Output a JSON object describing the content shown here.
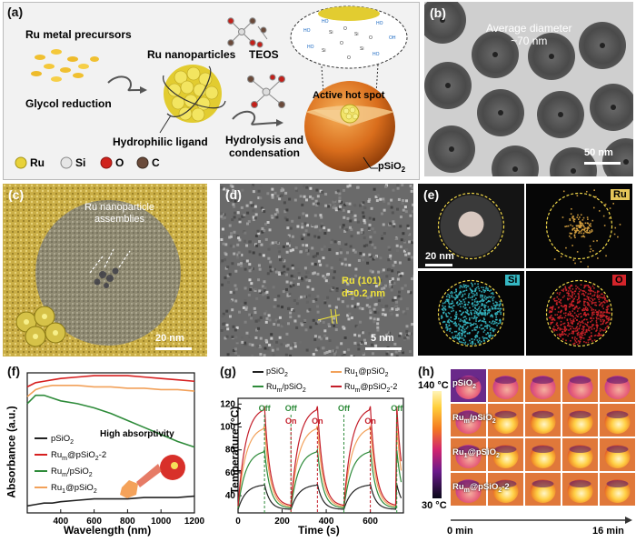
{
  "panel_a": {
    "label": "(a)",
    "precursors": "Ru metal precursors",
    "glycol": "Glycol reduction",
    "nanoparticles": "Ru nanoparticles",
    "teos": "TEOS",
    "ligand": "Hydrophilic ligand",
    "hotspot": "Active hot spot",
    "hydrolysis": "Hydrolysis and",
    "condensation": "condensation",
    "shell": "pSiO",
    "shell_sub": "2",
    "legend": [
      "Ru",
      "Si",
      "O",
      "C"
    ],
    "colors": {
      "Ru": "#e8d23a",
      "Si": "#e6e6e6",
      "O": "#d0221c",
      "C": "#6a4a3a"
    }
  },
  "panel_b": {
    "label": "(b)",
    "text1": "Average diameter",
    "text2": "~70 nm",
    "scale": "50 nm"
  },
  "panel_c": {
    "label": "(c)",
    "text1": "Ru nanoparticle",
    "text2": "assemblies",
    "scale": "20 nm"
  },
  "panel_d": {
    "label": "(d)",
    "text1": "Ru (101)",
    "text2": "d=0.2 nm",
    "scale": "5 nm"
  },
  "panel_e": {
    "label": "(e)",
    "scale": "20 nm",
    "maps": [
      "Ru",
      "Si",
      "O"
    ],
    "map_colors": {
      "Ru": "#d9a441",
      "Si": "#35b7c3",
      "O": "#d3242a"
    }
  },
  "chart_data": [
    {
      "panel": "(f)",
      "type": "line",
      "title": "",
      "xlabel": "Wavelength (nm)",
      "ylabel": "Absorbance (a.u.)",
      "xlim": [
        200,
        1200
      ],
      "xticks": [
        "400",
        "600",
        "800",
        "1000",
        "1200"
      ],
      "annotation": "High absorptivity",
      "x": [
        200,
        250,
        300,
        350,
        400,
        500,
        600,
        700,
        800,
        900,
        1000,
        1100,
        1200
      ],
      "series": [
        {
          "name": "pSiO",
          "sub": "2",
          "color": "#222222",
          "values": [
            0.05,
            0.06,
            0.07,
            0.07,
            0.08,
            0.09,
            0.1,
            0.1,
            0.1,
            0.11,
            0.11,
            0.11,
            0.12
          ]
        },
        {
          "name": "Ru",
          "sub": "m",
          "suffix": "@pSiO",
          "suffix_sub": "2",
          "tail": "-2",
          "color": "#d62020",
          "values": [
            0.9,
            0.93,
            0.94,
            0.95,
            0.96,
            0.97,
            0.98,
            0.98,
            0.98,
            0.97,
            0.96,
            0.95,
            0.94
          ]
        },
        {
          "name": "Ru",
          "sub": "m",
          "suffix": "/pSiO",
          "suffix_sub": "2",
          "tail": "",
          "color": "#2e8b3a",
          "values": [
            0.78,
            0.84,
            0.84,
            0.82,
            0.8,
            0.78,
            0.75,
            0.71,
            0.66,
            0.61,
            0.56,
            0.51,
            0.47
          ]
        },
        {
          "name": "Ru",
          "sub": "1",
          "suffix": "@pSiO",
          "suffix_sub": "2",
          "tail": "",
          "color": "#f2a15a",
          "values": [
            0.83,
            0.88,
            0.9,
            0.91,
            0.91,
            0.91,
            0.9,
            0.9,
            0.89,
            0.89,
            0.88,
            0.88,
            0.87
          ]
        }
      ]
    },
    {
      "panel": "(g)",
      "type": "line",
      "title": "",
      "xlabel": "Time (s)",
      "ylabel": "Temperature (°C)",
      "xlim": [
        0,
        750
      ],
      "ylim": [
        25,
        125
      ],
      "xticks": [
        0,
        200,
        400,
        600
      ],
      "yticks": [
        40,
        60,
        80,
        100,
        120
      ],
      "on_labels": [
        "On",
        "On",
        "On"
      ],
      "off_labels": [
        "Off",
        "Off",
        "Off",
        "Off"
      ],
      "on_times": [
        240,
        360,
        600
      ],
      "off_times": [
        120,
        240,
        480,
        720
      ],
      "series": [
        {
          "name": "pSiO",
          "sub": "2",
          "suffix": "",
          "suffix_sub": "",
          "tail": "",
          "color": "#222222",
          "peak": 50,
          "base": 28
        },
        {
          "name": "Ru",
          "sub": "1",
          "suffix": "@pSiO",
          "suffix_sub": "2",
          "tail": "",
          "color": "#f2a15a",
          "peak": 101,
          "base": 30
        },
        {
          "name": "Ru",
          "sub": "m",
          "suffix": "/pSiO",
          "suffix_sub": "2",
          "tail": "",
          "color": "#2e8b3a",
          "peak": 80,
          "base": 29
        },
        {
          "name": "Ru",
          "sub": "m",
          "suffix": "@pSiO",
          "suffix_sub": "2",
          "tail": "-2",
          "color": "#c41e2a",
          "peak": 118,
          "base": 31
        }
      ]
    }
  ],
  "panel_h": {
    "label": "(h)",
    "rows": [
      {
        "name": "pSiO",
        "sub": "2",
        "suffix": "",
        "suffix_sub": "",
        "tail": ""
      },
      {
        "name": "Ru",
        "sub": "m",
        "suffix": "/pSiO",
        "suffix_sub": "2",
        "tail": ""
      },
      {
        "name": "Ru",
        "sub": "1",
        "suffix": "@pSiO",
        "suffix_sub": "2",
        "tail": ""
      },
      {
        "name": "Ru",
        "sub": "m",
        "suffix": "@pSiO",
        "suffix_sub": "2",
        "tail": "-2"
      }
    ],
    "temp_max": "140 °C",
    "temp_min": "30 °C",
    "time_start": "0 min",
    "time_end": "16 min"
  }
}
